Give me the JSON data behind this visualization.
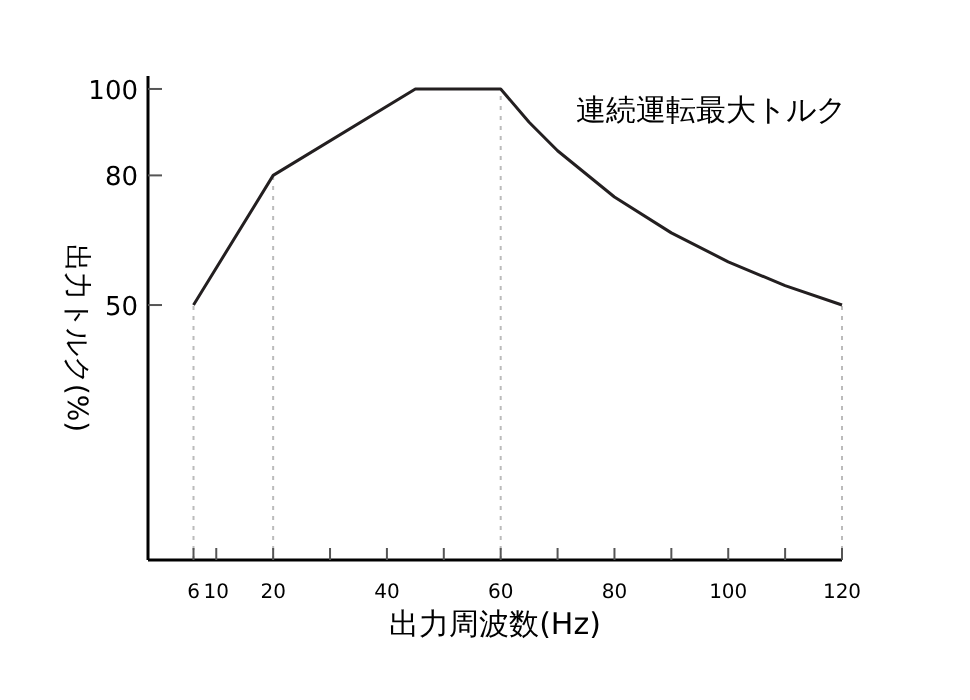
{
  "chart_data": {
    "type": "line",
    "xlabel": "出力周波数(Hz)",
    "ylabel": "出力トルク(%)",
    "x": [
      6,
      20,
      45,
      60,
      65,
      70,
      80,
      90,
      100,
      110,
      120
    ],
    "series": [
      {
        "color": "#231f20",
        "values": [
          50,
          80,
          100,
          100,
          92.3,
          85.7,
          75,
          66.7,
          60,
          54.5,
          50
        ]
      }
    ],
    "xlim": [
      -2,
      120
    ],
    "xticks": [
      6,
      10,
      20,
      {
        "value": 30,
        "label": null
      },
      40,
      {
        "value": 50,
        "label": null
      },
      60,
      {
        "value": 70,
        "label": null
      },
      80,
      {
        "value": 90,
        "label": null
      },
      100,
      {
        "value": 110,
        "label": null
      },
      120
    ],
    "ylim": [
      -9,
      103
    ],
    "yticks": [
      50,
      80,
      100
    ],
    "ref_lines": [
      {
        "axis": "x",
        "value": 6,
        "color": "#bbbbbb",
        "line_style": "dotted"
      },
      {
        "axis": "x",
        "value": 20,
        "color": "#bbbbbb",
        "line_style": "dotted"
      },
      {
        "axis": "x",
        "value": 60,
        "color": "#bbbbbb",
        "line_style": "dotted"
      },
      {
        "axis": "x",
        "value": 120,
        "color": "#bbbbbb",
        "line_style": "dotted"
      }
    ],
    "annotations": [
      "連続運転最大トルク"
    ],
    "grid": false,
    "marker": "none",
    "line_style": "solid"
  }
}
